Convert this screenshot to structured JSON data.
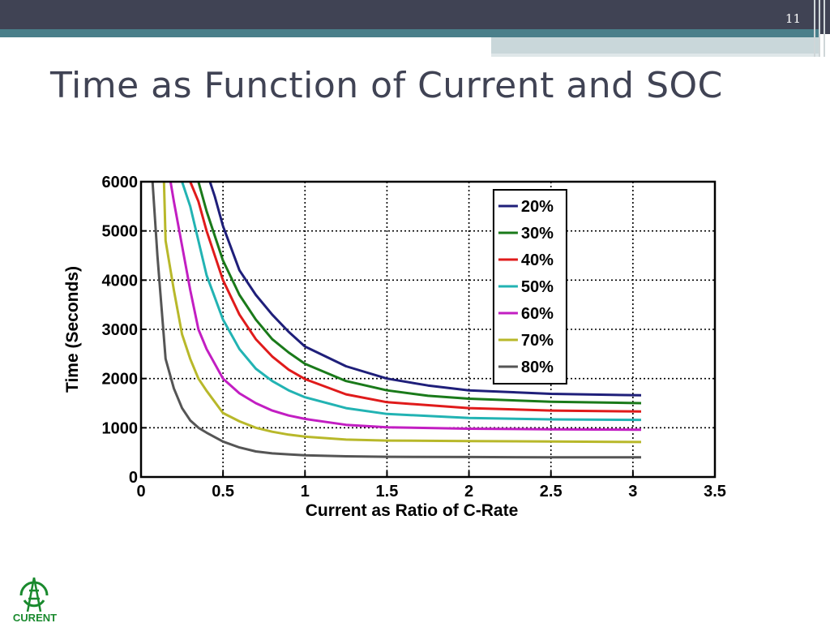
{
  "slide": {
    "number": "11",
    "title": "Time as Function of Current and SOC",
    "logo_text": "CURENT"
  },
  "colors": {
    "header_bar": "#404354",
    "accent_teal": "#4a7f8a",
    "logo_green": "#1a8a2e"
  },
  "chart_data": {
    "type": "line",
    "xlabel": "Current as Ratio of C-Rate",
    "ylabel": "Time (Seconds)",
    "xlim": [
      0,
      3.5
    ],
    "ylim": [
      0,
      6000
    ],
    "xticks": [
      0,
      0.5,
      1,
      1.5,
      2,
      2.5,
      3,
      3.5
    ],
    "xtick_labels": [
      "0",
      "0.5",
      "1",
      "1.5",
      "2",
      "2.5",
      "3",
      "3.5"
    ],
    "yticks": [
      0,
      1000,
      2000,
      3000,
      4000,
      5000,
      6000
    ],
    "ytick_labels": [
      "0",
      "1000",
      "2000",
      "3000",
      "4000",
      "5000",
      "6000"
    ],
    "grid": true,
    "legend_position": "top-right",
    "series": [
      {
        "name": "20%",
        "color": "#1f1f7a",
        "x": [
          0.42,
          0.45,
          0.5,
          0.6,
          0.7,
          0.8,
          0.9,
          1.0,
          1.25,
          1.5,
          1.75,
          2.0,
          2.5,
          3.05
        ],
        "y": [
          6000,
          5700,
          5100,
          4200,
          3700,
          3300,
          2950,
          2650,
          2250,
          2000,
          1860,
          1760,
          1690,
          1660
        ]
      },
      {
        "name": "30%",
        "color": "#1a7a1a",
        "x": [
          0.35,
          0.4,
          0.5,
          0.6,
          0.7,
          0.8,
          0.9,
          1.0,
          1.25,
          1.5,
          1.75,
          2.0,
          2.5,
          3.05
        ],
        "y": [
          6000,
          5400,
          4400,
          3700,
          3200,
          2800,
          2530,
          2300,
          1950,
          1760,
          1650,
          1590,
          1530,
          1500
        ]
      },
      {
        "name": "40%",
        "color": "#e01b1b",
        "x": [
          0.3,
          0.35,
          0.4,
          0.5,
          0.6,
          0.7,
          0.8,
          0.9,
          1.0,
          1.25,
          1.5,
          2.0,
          2.5,
          3.05
        ],
        "y": [
          6000,
          5600,
          5000,
          4000,
          3300,
          2800,
          2450,
          2180,
          1990,
          1680,
          1520,
          1400,
          1350,
          1330
        ]
      },
      {
        "name": "50%",
        "color": "#22b3b3",
        "x": [
          0.25,
          0.3,
          0.35,
          0.4,
          0.5,
          0.6,
          0.7,
          0.8,
          0.9,
          1.0,
          1.25,
          1.5,
          2.0,
          2.5,
          3.05
        ],
        "y": [
          6000,
          5500,
          4800,
          4100,
          3200,
          2600,
          2200,
          1950,
          1760,
          1620,
          1400,
          1280,
          1200,
          1170,
          1160
        ]
      },
      {
        "name": "60%",
        "color": "#c21ec2",
        "x": [
          0.18,
          0.2,
          0.25,
          0.3,
          0.35,
          0.4,
          0.5,
          0.6,
          0.7,
          0.8,
          0.9,
          1.0,
          1.25,
          1.5,
          2.0,
          2.5,
          3.05
        ],
        "y": [
          6000,
          5600,
          4700,
          3800,
          3000,
          2600,
          2000,
          1700,
          1500,
          1350,
          1250,
          1180,
          1060,
          1010,
          980,
          970,
          960
        ]
      },
      {
        "name": "70%",
        "color": "#b8b82a",
        "x": [
          0.14,
          0.15,
          0.2,
          0.25,
          0.3,
          0.35,
          0.4,
          0.5,
          0.6,
          0.7,
          0.8,
          0.9,
          1.0,
          1.25,
          1.5,
          2.0,
          2.5,
          3.05
        ],
        "y": [
          6000,
          4800,
          3800,
          2900,
          2400,
          2000,
          1750,
          1300,
          1130,
          1000,
          920,
          860,
          820,
          760,
          740,
          730,
          720,
          710
        ]
      },
      {
        "name": "80%",
        "color": "#555555",
        "x": [
          0.07,
          0.1,
          0.15,
          0.2,
          0.25,
          0.3,
          0.35,
          0.4,
          0.5,
          0.6,
          0.7,
          0.8,
          0.9,
          1.0,
          1.25,
          1.5,
          2.0,
          2.5,
          3.05
        ],
        "y": [
          6000,
          4500,
          2400,
          1800,
          1400,
          1150,
          1000,
          900,
          720,
          600,
          520,
          480,
          460,
          440,
          420,
          410,
          405,
          400,
          400
        ]
      }
    ]
  }
}
